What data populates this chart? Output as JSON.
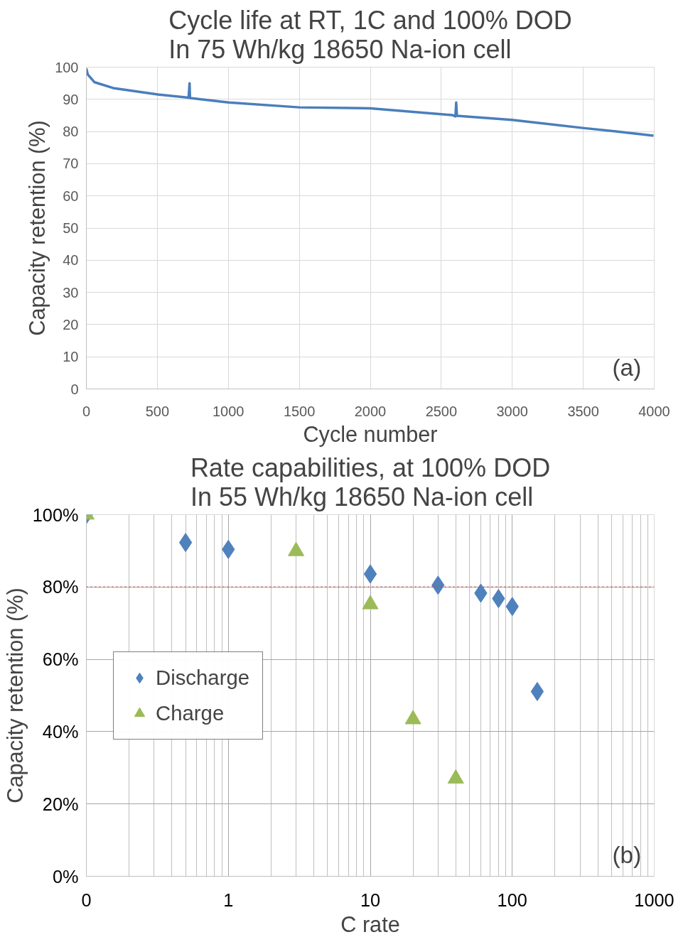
{
  "chart_data": [
    {
      "type": "line",
      "title": "Cycle life at RT, 1C and 100% DOD\nIn 75 Wh/kg 18650 Na-ion cell",
      "xlabel": "Cycle number",
      "ylabel": "Capacity retention (%)",
      "xlim": [
        0,
        4000
      ],
      "xticks": [
        0,
        500,
        1000,
        1500,
        2000,
        2500,
        3000,
        3500,
        4000
      ],
      "ylim": [
        0,
        100
      ],
      "yticks": [
        0,
        10,
        20,
        30,
        40,
        50,
        60,
        70,
        80,
        90,
        100
      ],
      "grid": true,
      "legend": false,
      "series": [
        {
          "color": "#4a7ebb",
          "x": [
            0,
            10,
            58,
            189,
            504,
            720,
            727,
            730,
            1003,
            1501,
            2000,
            2499,
            2577,
            2600,
            2605,
            2610,
            2997,
            3496,
            3732,
            3995
          ],
          "values": [
            99.6,
            97.7,
            95.3,
            93.5,
            91.5,
            90.5,
            95.0,
            90.4,
            89.0,
            87.5,
            87.2,
            85.4,
            85.1,
            84.7,
            89.0,
            84.9,
            83.6,
            81.1,
            80.0,
            78.7
          ]
        }
      ],
      "annotations": [
        "(a)"
      ]
    },
    {
      "type": "scatter",
      "title": "Rate capabilities, at 100% DOD\nIn 55 Wh/kg 18650 Na-ion cell",
      "xlabel": "C rate",
      "ylabel": "Capacity retention (%)",
      "log": "x",
      "xlim": [
        0.1,
        1000
      ],
      "xticks": [
        {
          "value": 0.1,
          "label": "0"
        },
        1,
        10,
        100,
        1000
      ],
      "ylim": [
        0,
        100
      ],
      "yticks": [
        {
          "value": 0,
          "label": "0%"
        },
        {
          "value": 20,
          "label": "20%"
        },
        {
          "value": 40,
          "label": "40%"
        },
        {
          "value": 60,
          "label": "60%"
        },
        {
          "value": 80,
          "label": "80%"
        },
        {
          "value": 100,
          "label": "100%"
        }
      ],
      "grid": true,
      "legend": "left",
      "series": [
        {
          "name": "Discharge",
          "color": "#4f81bd",
          "marker": "diamond",
          "x": [
            0.1,
            0.5,
            1,
            10,
            30,
            60,
            80,
            100,
            150
          ],
          "values": [
            100,
            92.3,
            90.4,
            83.6,
            80.5,
            78.3,
            76.8,
            74.6,
            51.1
          ]
        },
        {
          "name": "Charge",
          "color": "#9bbb59",
          "marker": "triangle",
          "x": [
            0.1,
            3,
            10,
            20,
            40
          ],
          "values": [
            100,
            89.9,
            75.2,
            43.4,
            27.0
          ]
        }
      ],
      "ref_lines": [
        {
          "axis": "y",
          "value": 80,
          "color": "#c0504d",
          "line_style": "dotted"
        }
      ],
      "annotations": [
        "(b)"
      ]
    }
  ]
}
